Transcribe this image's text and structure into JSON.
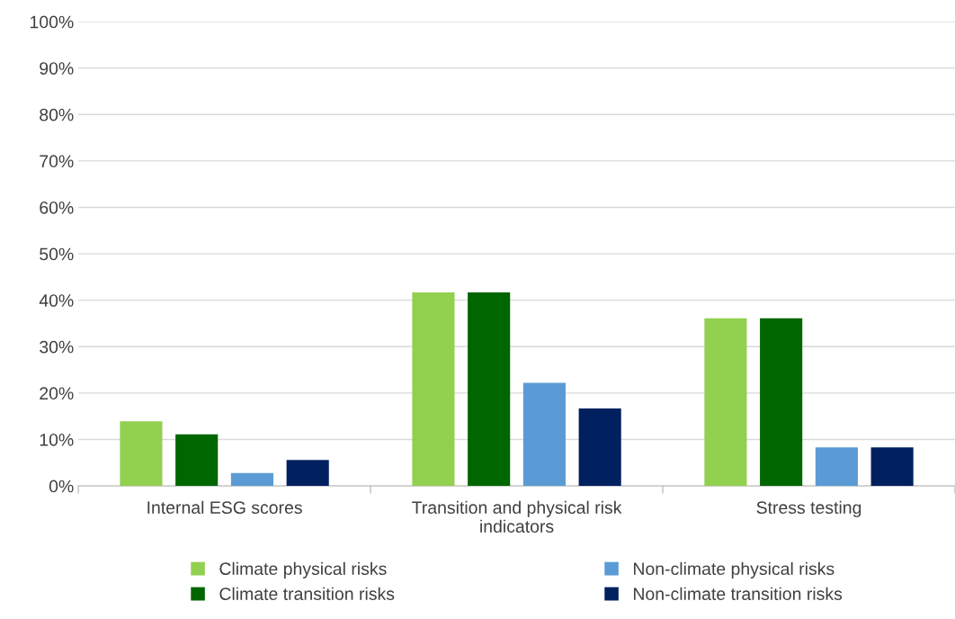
{
  "chart_data": {
    "type": "bar",
    "categories": [
      "Internal ESG scores",
      "Transition and physical risk\nindicators",
      "Stress testing"
    ],
    "series": [
      {
        "name": "Climate physical risks",
        "color": "#92d050",
        "values": [
          13.9,
          41.7,
          36.1
        ]
      },
      {
        "name": "Climate transition risks",
        "color": "#006600",
        "values": [
          11.1,
          41.7,
          36.1
        ]
      },
      {
        "name": "Non-climate physical risks",
        "color": "#5b9bd5",
        "values": [
          2.8,
          22.2,
          8.3
        ]
      },
      {
        "name": "Non-climate transition risks",
        "color": "#002060",
        "values": [
          5.6,
          16.7,
          8.3
        ]
      }
    ],
    "ylim": [
      0,
      100
    ],
    "yticks": [
      {
        "value": 0,
        "label": "0%"
      },
      {
        "value": 10,
        "label": "10%"
      },
      {
        "value": 20,
        "label": "20%"
      },
      {
        "value": 30,
        "label": "30%"
      },
      {
        "value": 40,
        "label": "40%"
      },
      {
        "value": 50,
        "label": "50%"
      },
      {
        "value": 60,
        "label": "60%"
      },
      {
        "value": 70,
        "label": "70%"
      },
      {
        "value": 80,
        "label": "80%"
      },
      {
        "value": 90,
        "label": "90%"
      },
      {
        "value": 100,
        "label": "100%"
      }
    ],
    "grid": "y",
    "legend": "bottom"
  }
}
